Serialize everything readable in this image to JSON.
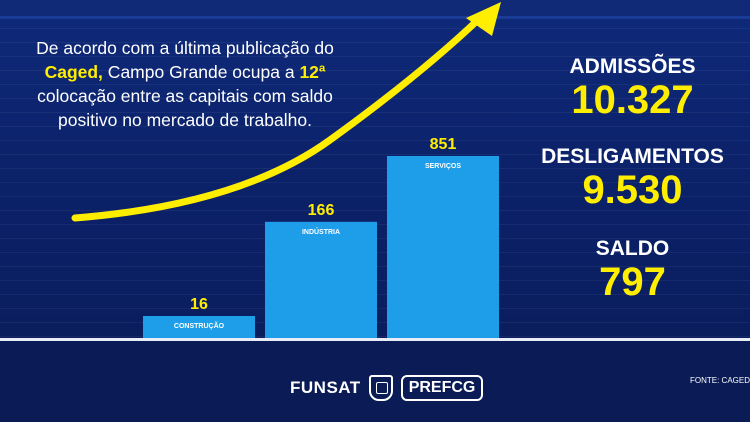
{
  "headline": {
    "part1": "De acordo com a última publicação do ",
    "highlight1": "Caged,",
    "part2": " Campo Grande ocupa a ",
    "highlight2": "12ª",
    "part3": " colocação entre as capitais com saldo positivo no mercado de trabalho."
  },
  "chart_data": {
    "type": "bar",
    "title": "",
    "xlabel": "",
    "ylabel": "",
    "categories": [
      "CONSTRUÇÃO",
      "INDÚSTRIA",
      "SERVIÇOS"
    ],
    "values": [
      16,
      166,
      851
    ],
    "ylim": [
      0,
      851
    ],
    "grid": false,
    "legend": "none",
    "colors": {
      "bar": "#1e9ee8",
      "value_label": "#ffee00",
      "category_label": "#ffffff",
      "arrow": "#ffee00"
    }
  },
  "stats": {
    "admissoes_label": "ADMISSÕES",
    "admissoes_value": "10.327",
    "desligamentos_label": "DESLIGAMENTOS",
    "desligamentos_value": "9.530",
    "saldo_label": "SALDO",
    "saldo_value": "797"
  },
  "branding": {
    "funsat": "FUNSAT",
    "pref": "PREF",
    "cg": "CG",
    "crest_icon": "city-crest-icon"
  },
  "source": "FONTE: CAGED",
  "colors": {
    "background": "#0b2168",
    "highlight": "#ffee00",
    "text": "#ffffff"
  }
}
